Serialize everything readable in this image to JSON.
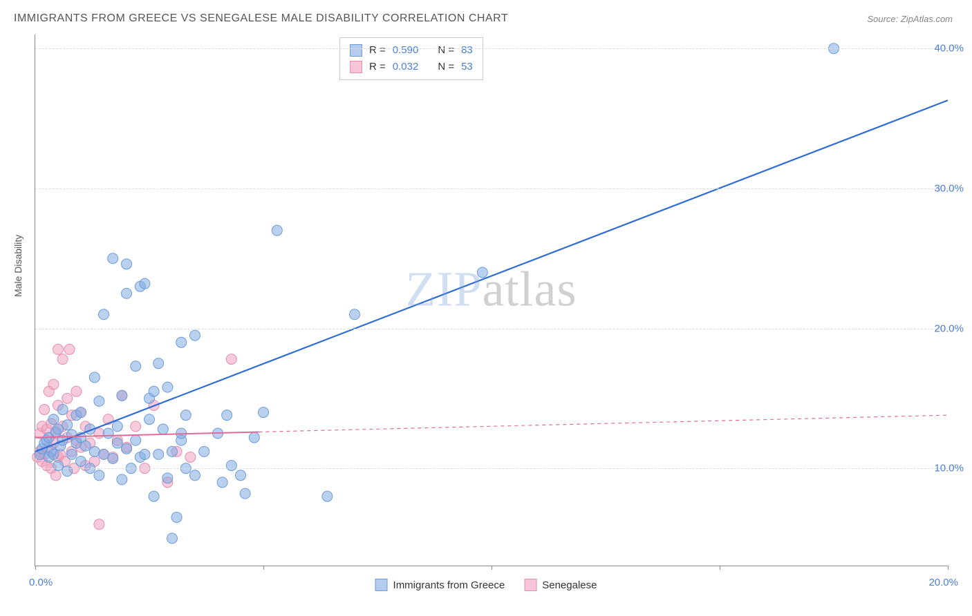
{
  "title": "IMMIGRANTS FROM GREECE VS SENEGALESE MALE DISABILITY CORRELATION CHART",
  "source": "Source: ZipAtlas.com",
  "y_axis_label": "Male Disability",
  "watermark": {
    "part1": "ZIP",
    "part2": "atlas"
  },
  "chart": {
    "type": "scatter",
    "background_color": "#ffffff",
    "grid_color": "#dddddd",
    "axis_color": "#888888",
    "xlim": [
      0,
      20
    ],
    "ylim": [
      3,
      41
    ],
    "series_labels": {
      "greece": "Immigrants from Greece",
      "senegalese": "Senegalese"
    },
    "colors": {
      "greece_fill": "rgba(130,170,225,0.55)",
      "greece_stroke": "#6d9cd6",
      "senegalese_fill": "rgba(240,160,190,0.55)",
      "senegalese_stroke": "#e38fb0",
      "greece_line": "#2e6bd6",
      "senegalese_line": "#e06a9a",
      "tick_label": "#4a7fd8"
    },
    "marker_radius": 7.5,
    "y_ticks": [
      10,
      20,
      30,
      40
    ],
    "y_tick_labels": [
      "10.0%",
      "20.0%",
      "30.0%",
      "40.0%"
    ],
    "x_ticks_minor": [
      0,
      5,
      10,
      15,
      20
    ],
    "x_tick_labels": {
      "0": "0.0%",
      "20": "20.0%"
    },
    "legend_top": [
      {
        "swatch_fill": "rgba(130,170,225,0.6)",
        "swatch_stroke": "#6d9cd6",
        "r_label": "R =",
        "r_val": "0.590",
        "n_label": "N =",
        "n_val": "83"
      },
      {
        "swatch_fill": "rgba(240,160,190,0.6)",
        "swatch_stroke": "#e38fb0",
        "r_label": "R =",
        "r_val": "0.032",
        "n_label": "N =",
        "n_val": "53"
      }
    ],
    "trend_lines": {
      "greece": {
        "solid": {
          "x1": 0,
          "y1": 11.2,
          "x2": 4.9,
          "y2": 17.4
        },
        "dashed_visible": false,
        "full_x2": 20,
        "full_y2": 36.3,
        "line_width": 2.2
      },
      "senegalese": {
        "solid": {
          "x1": 0,
          "y1": 12.2,
          "x2": 4.9,
          "y2": 12.6
        },
        "dashed": {
          "x1": 4.9,
          "y1": 12.6,
          "x2": 20,
          "y2": 13.8
        },
        "line_width": 2.0,
        "dash_pattern": "5,5"
      }
    },
    "points_greece": [
      [
        0.1,
        11.0
      ],
      [
        0.15,
        11.4
      ],
      [
        0.2,
        11.8
      ],
      [
        0.25,
        12.0
      ],
      [
        0.3,
        10.8
      ],
      [
        0.3,
        12.2
      ],
      [
        0.35,
        11.2
      ],
      [
        0.4,
        11.0
      ],
      [
        0.4,
        13.5
      ],
      [
        0.45,
        12.6
      ],
      [
        0.5,
        10.2
      ],
      [
        0.5,
        12.8
      ],
      [
        0.55,
        11.6
      ],
      [
        0.6,
        12.0
      ],
      [
        0.6,
        14.2
      ],
      [
        0.7,
        9.8
      ],
      [
        0.7,
        13.1
      ],
      [
        0.8,
        11.0
      ],
      [
        0.8,
        12.4
      ],
      [
        0.9,
        11.8
      ],
      [
        0.9,
        13.8
      ],
      [
        1.0,
        10.5
      ],
      [
        1.0,
        12.2
      ],
      [
        1.0,
        14.0
      ],
      [
        1.1,
        11.6
      ],
      [
        1.2,
        12.8
      ],
      [
        1.2,
        10.0
      ],
      [
        1.3,
        11.2
      ],
      [
        1.3,
        16.5
      ],
      [
        1.4,
        9.5
      ],
      [
        1.4,
        14.8
      ],
      [
        1.5,
        11.0
      ],
      [
        1.5,
        21.0
      ],
      [
        1.6,
        12.5
      ],
      [
        1.7,
        10.7
      ],
      [
        1.7,
        25.0
      ],
      [
        1.8,
        11.8
      ],
      [
        1.8,
        13.0
      ],
      [
        1.9,
        9.2
      ],
      [
        1.9,
        15.2
      ],
      [
        2.0,
        11.4
      ],
      [
        2.0,
        22.5
      ],
      [
        2.0,
        24.6
      ],
      [
        2.1,
        10.0
      ],
      [
        2.2,
        12.0
      ],
      [
        2.2,
        17.3
      ],
      [
        2.3,
        10.8
      ],
      [
        2.3,
        23.0
      ],
      [
        2.4,
        11.0
      ],
      [
        2.4,
        23.2
      ],
      [
        2.5,
        13.5
      ],
      [
        2.5,
        15.0
      ],
      [
        2.6,
        8.0
      ],
      [
        2.6,
        15.5
      ],
      [
        2.7,
        11.0
      ],
      [
        2.7,
        17.5
      ],
      [
        2.8,
        12.8
      ],
      [
        2.9,
        9.3
      ],
      [
        2.9,
        15.8
      ],
      [
        3.0,
        5.0
      ],
      [
        3.0,
        11.2
      ],
      [
        3.1,
        6.5
      ],
      [
        3.2,
        12.0
      ],
      [
        3.2,
        12.5
      ],
      [
        3.2,
        19.0
      ],
      [
        3.3,
        10.0
      ],
      [
        3.3,
        13.8
      ],
      [
        3.5,
        9.5
      ],
      [
        3.5,
        19.5
      ],
      [
        3.7,
        11.2
      ],
      [
        4.0,
        12.5
      ],
      [
        4.1,
        9.0
      ],
      [
        4.2,
        13.8
      ],
      [
        4.3,
        10.2
      ],
      [
        4.5,
        9.5
      ],
      [
        4.6,
        8.2
      ],
      [
        4.8,
        12.2
      ],
      [
        5.0,
        14.0
      ],
      [
        5.3,
        27.0
      ],
      [
        6.4,
        8.0
      ],
      [
        7.0,
        21.0
      ],
      [
        9.8,
        24.0
      ],
      [
        17.5,
        40.0
      ]
    ],
    "points_senegalese": [
      [
        0.05,
        10.8
      ],
      [
        0.1,
        11.2
      ],
      [
        0.1,
        12.5
      ],
      [
        0.15,
        10.5
      ],
      [
        0.15,
        13.0
      ],
      [
        0.2,
        11.0
      ],
      [
        0.2,
        14.2
      ],
      [
        0.25,
        10.2
      ],
      [
        0.25,
        12.8
      ],
      [
        0.3,
        11.5
      ],
      [
        0.3,
        15.5
      ],
      [
        0.35,
        10.0
      ],
      [
        0.35,
        13.2
      ],
      [
        0.4,
        11.8
      ],
      [
        0.4,
        16.0
      ],
      [
        0.45,
        9.5
      ],
      [
        0.45,
        12.5
      ],
      [
        0.5,
        10.8
      ],
      [
        0.5,
        14.5
      ],
      [
        0.5,
        18.5
      ],
      [
        0.55,
        11.0
      ],
      [
        0.6,
        13.0
      ],
      [
        0.6,
        17.8
      ],
      [
        0.65,
        10.5
      ],
      [
        0.7,
        12.2
      ],
      [
        0.7,
        15.0
      ],
      [
        0.75,
        18.5
      ],
      [
        0.8,
        11.2
      ],
      [
        0.8,
        13.8
      ],
      [
        0.85,
        10.0
      ],
      [
        0.9,
        12.0
      ],
      [
        0.9,
        15.5
      ],
      [
        1.0,
        11.5
      ],
      [
        1.0,
        14.0
      ],
      [
        1.1,
        10.2
      ],
      [
        1.1,
        13.0
      ],
      [
        1.2,
        11.8
      ],
      [
        1.3,
        10.5
      ],
      [
        1.4,
        12.5
      ],
      [
        1.4,
        6.0
      ],
      [
        1.5,
        11.0
      ],
      [
        1.6,
        13.5
      ],
      [
        1.7,
        10.8
      ],
      [
        1.8,
        12.0
      ],
      [
        1.9,
        15.2
      ],
      [
        2.0,
        11.5
      ],
      [
        2.2,
        13.0
      ],
      [
        2.4,
        10.0
      ],
      [
        2.6,
        14.5
      ],
      [
        2.9,
        9.0
      ],
      [
        3.1,
        11.2
      ],
      [
        3.4,
        10.8
      ],
      [
        4.3,
        17.8
      ]
    ]
  }
}
